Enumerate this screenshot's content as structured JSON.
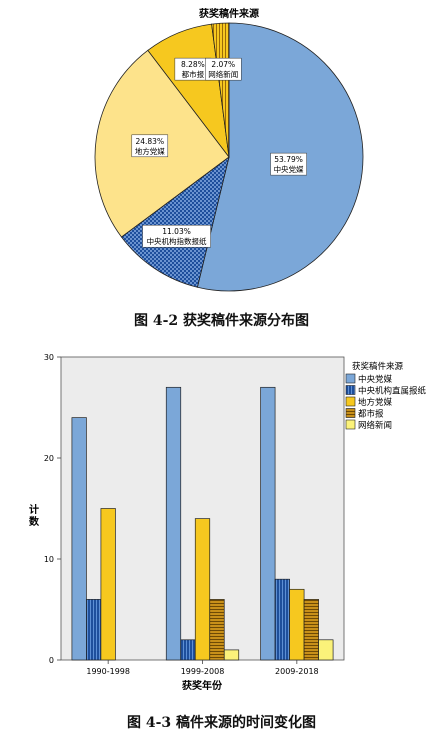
{
  "chart_data": [
    {
      "type": "pie",
      "title": "获奖稿件来源",
      "slices": [
        {
          "label": "中央党媒",
          "value": 53.79,
          "pct_label": "53.79%",
          "color": "#7ba7d8",
          "pattern": "solid"
        },
        {
          "label": "中央机构指数报纸",
          "value": 11.03,
          "pct_label": "11.03%",
          "color": "#1e4f9c",
          "pattern": "checker"
        },
        {
          "label": "地方党媒",
          "value": 24.83,
          "pct_label": "24.83%",
          "color": "#fde38b",
          "pattern": "solid"
        },
        {
          "label": "都市报",
          "value": 8.28,
          "pct_label": "8.28%",
          "color": "#f6c81f",
          "pattern": "solid"
        },
        {
          "label": "网络新闻",
          "value": 2.07,
          "pct_label": "2.07%",
          "color": "#e7a814",
          "pattern": "vstripe"
        }
      ]
    },
    {
      "type": "bar",
      "legend_title": "获奖稿件来源",
      "legend_position": "right",
      "xlabel": "获奖年份",
      "ylabel": "计数",
      "ylim": [
        0,
        30
      ],
      "yticks": [
        "0",
        "10",
        "20",
        "30"
      ],
      "categories": [
        "1990-1998",
        "1999-2008",
        "2009-2018"
      ],
      "series": [
        {
          "name": "中央党媒",
          "values": [
            24,
            27,
            27
          ],
          "color": "#7ba7d8",
          "pattern": "solid"
        },
        {
          "name": "中央机构直属报纸",
          "values": [
            6,
            2,
            8
          ],
          "color": "#1e4f9c",
          "pattern": "vstripe"
        },
        {
          "name": "地方党媒",
          "values": [
            15,
            14,
            7
          ],
          "color": "#f6c81f",
          "pattern": "solid"
        },
        {
          "name": "都市报",
          "values": [
            0,
            6,
            6
          ],
          "color": "#c8901a",
          "pattern": "hstripe"
        },
        {
          "name": "网络新闻",
          "values": [
            0,
            1,
            2
          ],
          "color": "#fbf27a",
          "pattern": "solid"
        }
      ]
    }
  ],
  "captions": {
    "pie": "图 4-2 获奖稿件来源分布图",
    "bar": "图 4-3 稿件来源的时间变化图"
  }
}
